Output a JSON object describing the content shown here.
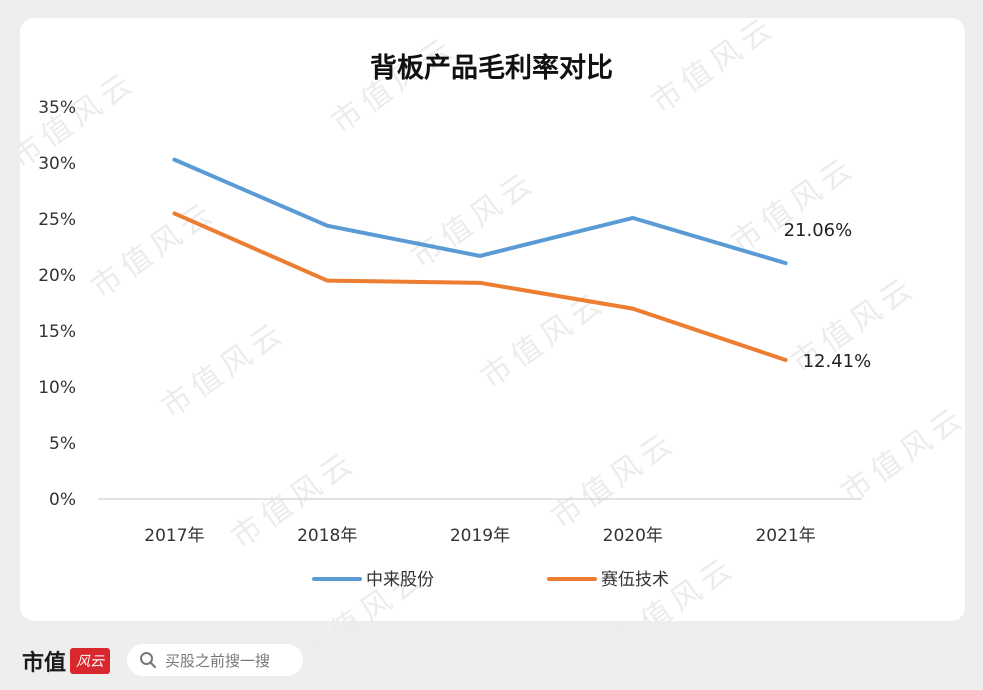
{
  "footer": {
    "brand_name": "市值",
    "brand_seal": "风云",
    "search_placeholder": "买股之前搜一搜"
  },
  "watermark_text": "市值风云",
  "colors": {
    "series_1": "#5b9bd5",
    "series_2": "#ed7d31",
    "axis": "#d9d9d9",
    "background": "#eeeeee",
    "card": "#ffffff"
  },
  "chart_data": {
    "type": "line",
    "title": "背板产品毛利率对比",
    "categories": [
      "2017年",
      "2018年",
      "2019年",
      "2020年",
      "2021年"
    ],
    "y_ticks": [
      "0%",
      "5%",
      "10%",
      "15%",
      "20%",
      "25%",
      "30%",
      "35%"
    ],
    "ylim": [
      0,
      35
    ],
    "grid": false,
    "legend_position": "bottom",
    "series": [
      {
        "name": "中来股份",
        "values": [
          30.3,
          24.4,
          21.7,
          25.1,
          21.06
        ],
        "end_label": "21.06%"
      },
      {
        "name": "赛伍技术",
        "values": [
          25.5,
          19.5,
          19.3,
          17.0,
          12.41
        ],
        "end_label": "12.41%"
      }
    ]
  }
}
